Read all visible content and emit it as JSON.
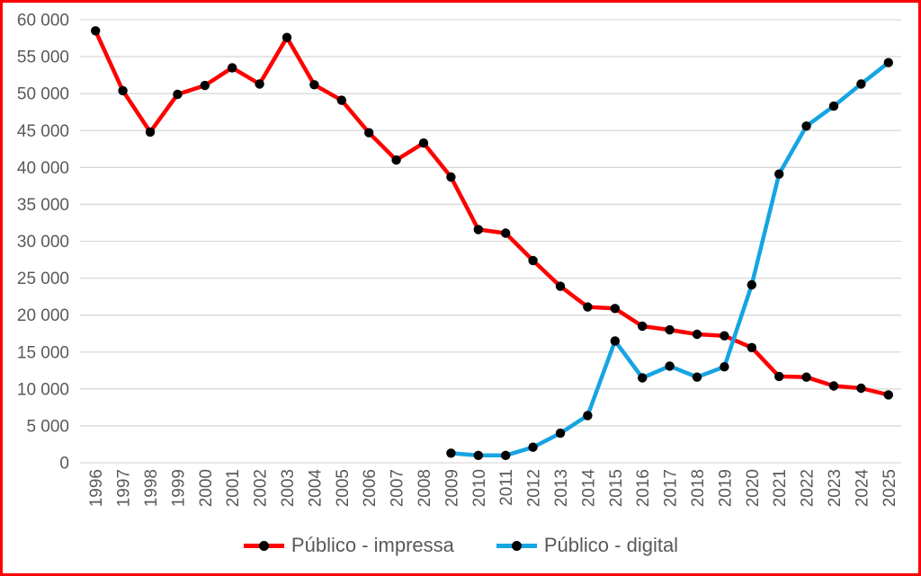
{
  "frame": {
    "border_color": "#FF0000",
    "background_color": "#FFFFFF"
  },
  "axis": {
    "label_color": "#595959",
    "gridline_color": "#D9D9D9"
  },
  "legend": {
    "position": "bottom",
    "marker_dot_color": "#000000"
  },
  "chart_data": {
    "type": "line",
    "title": "",
    "xlabel": "",
    "ylabel": "",
    "grid": true,
    "legend_position": "bottom",
    "ylim": [
      0,
      60000
    ],
    "ytick_step": 5000,
    "ytick_labels": [
      "0",
      "5 000",
      "10 000",
      "15 000",
      "20 000",
      "25 000",
      "30 000",
      "35 000",
      "40 000",
      "45 000",
      "50 000",
      "55 000",
      "60 000"
    ],
    "categories": [
      "1996",
      "1997",
      "1998",
      "1999",
      "2000",
      "2001",
      "2002",
      "2003",
      "2004",
      "2005",
      "2006",
      "2007",
      "2008",
      "2009",
      "2010",
      "2011",
      "2012",
      "2013",
      "2014",
      "2015",
      "2016",
      "2017",
      "2018",
      "2019",
      "2020",
      "2021",
      "2022",
      "2023",
      "2024",
      "2025"
    ],
    "series": [
      {
        "name": "Público - impressa",
        "color": "#FF0000",
        "marker_color": "#000000",
        "values": [
          58500,
          50400,
          44800,
          49900,
          51100,
          53500,
          51300,
          57600,
          51200,
          49100,
          44700,
          41000,
          43300,
          38700,
          31600,
          31100,
          27400,
          23900,
          21100,
          20900,
          18500,
          18000,
          17400,
          17200,
          15600,
          11700,
          11600,
          10400,
          10100,
          9200
        ]
      },
      {
        "name": "Público - digital",
        "color": "#16A4E2",
        "marker_color": "#000000",
        "values": [
          null,
          null,
          null,
          null,
          null,
          null,
          null,
          null,
          null,
          null,
          null,
          null,
          null,
          1300,
          1000,
          1000,
          2100,
          4000,
          6400,
          16500,
          11500,
          13100,
          11600,
          13000,
          24100,
          39100,
          45600,
          48300,
          51300,
          54200
        ]
      }
    ]
  }
}
